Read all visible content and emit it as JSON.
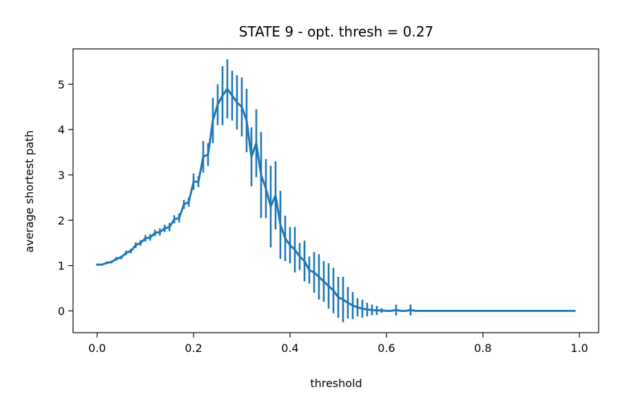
{
  "chart_data": {
    "type": "line",
    "title": "STATE 9  - opt. thresh = 0.27",
    "xlabel": "threshold",
    "ylabel": "average shortest path",
    "xlim": [
      -0.05,
      1.04
    ],
    "ylim": [
      -0.48,
      5.78
    ],
    "xticks": [
      0.0,
      0.2,
      0.4,
      0.6,
      0.8,
      1.0
    ],
    "xtick_labels": [
      "0.0",
      "0.2",
      "0.4",
      "0.6",
      "0.8",
      "1.0"
    ],
    "yticks": [
      0,
      1,
      2,
      3,
      4,
      5
    ],
    "ytick_labels": [
      "0",
      "1",
      "2",
      "3",
      "4",
      "5"
    ],
    "grid": false,
    "legend": "none",
    "color": "#1f77b4",
    "series": [
      {
        "x": [
          0.0,
          0.01,
          0.02,
          0.03,
          0.04,
          0.05,
          0.06,
          0.07,
          0.08,
          0.09,
          0.1,
          0.11,
          0.12,
          0.13,
          0.14,
          0.15,
          0.16,
          0.17,
          0.18,
          0.19,
          0.2,
          0.21,
          0.22,
          0.23,
          0.24,
          0.25,
          0.26,
          0.27,
          0.28,
          0.29,
          0.3,
          0.31,
          0.32,
          0.33,
          0.34,
          0.35,
          0.36,
          0.37,
          0.38,
          0.39,
          0.4,
          0.41,
          0.42,
          0.43,
          0.44,
          0.45,
          0.46,
          0.47,
          0.48,
          0.49,
          0.5,
          0.51,
          0.52,
          0.53,
          0.54,
          0.55,
          0.56,
          0.57,
          0.58,
          0.59,
          0.6,
          0.61,
          0.62,
          0.63,
          0.64,
          0.65,
          0.66,
          0.67,
          0.68,
          0.69,
          0.7,
          0.71,
          0.72,
          0.73,
          0.74,
          0.75,
          0.76,
          0.77,
          0.78,
          0.79,
          0.8,
          0.81,
          0.82,
          0.83,
          0.84,
          0.85,
          0.86,
          0.87,
          0.88,
          0.89,
          0.9,
          0.91,
          0.92,
          0.93,
          0.94,
          0.95,
          0.96,
          0.97,
          0.98,
          0.99
        ],
        "y": [
          1.02,
          1.02,
          1.06,
          1.08,
          1.15,
          1.18,
          1.28,
          1.32,
          1.45,
          1.5,
          1.6,
          1.62,
          1.72,
          1.74,
          1.82,
          1.85,
          2.02,
          2.05,
          2.35,
          2.4,
          2.85,
          2.85,
          3.4,
          3.45,
          4.2,
          4.55,
          4.75,
          4.9,
          4.75,
          4.6,
          4.5,
          4.2,
          3.4,
          3.7,
          3.0,
          2.7,
          2.3,
          2.55,
          1.9,
          1.6,
          1.45,
          1.35,
          1.2,
          1.1,
          0.9,
          0.85,
          0.75,
          0.65,
          0.55,
          0.45,
          0.3,
          0.25,
          0.18,
          0.12,
          0.08,
          0.05,
          0.03,
          0.02,
          0.01,
          0.01,
          0.0,
          0.0,
          0.02,
          0.0,
          0.0,
          0.02,
          0.0,
          0.0,
          0.0,
          0.0,
          0.0,
          0.0,
          0.0,
          0.0,
          0.0,
          0.0,
          0.0,
          0.0,
          0.0,
          0.0,
          0.0,
          0.0,
          0.0,
          0.0,
          0.0,
          0.0,
          0.0,
          0.0,
          0.0,
          0.0,
          0.0,
          0.0,
          0.0,
          0.0,
          0.0,
          0.0,
          0.0,
          0.0,
          0.0,
          0.0
        ],
        "yerr": [
          0.02,
          0.02,
          0.03,
          0.03,
          0.04,
          0.04,
          0.05,
          0.05,
          0.06,
          0.06,
          0.07,
          0.07,
          0.07,
          0.08,
          0.08,
          0.09,
          0.09,
          0.1,
          0.1,
          0.1,
          0.18,
          0.12,
          0.35,
          0.25,
          0.5,
          0.45,
          0.65,
          0.65,
          0.55,
          0.6,
          0.65,
          0.7,
          0.65,
          0.75,
          0.95,
          0.65,
          0.9,
          0.75,
          0.75,
          0.5,
          0.4,
          0.5,
          0.3,
          0.45,
          0.3,
          0.45,
          0.5,
          0.45,
          0.5,
          0.5,
          0.45,
          0.5,
          0.35,
          0.3,
          0.2,
          0.2,
          0.15,
          0.12,
          0.1,
          0.05,
          0.0,
          0.0,
          0.12,
          0.0,
          0.0,
          0.12,
          0.0,
          0.0,
          0.0,
          0.0,
          0.0,
          0.0,
          0.0,
          0.0,
          0.0,
          0.0,
          0.0,
          0.0,
          0.0,
          0.0,
          0.0,
          0.0,
          0.0,
          0.0,
          0.0,
          0.0,
          0.0,
          0.0,
          0.0,
          0.0,
          0.0,
          0.0,
          0.0,
          0.0,
          0.0,
          0.0,
          0.0,
          0.0,
          0.0,
          0.0
        ]
      }
    ]
  }
}
